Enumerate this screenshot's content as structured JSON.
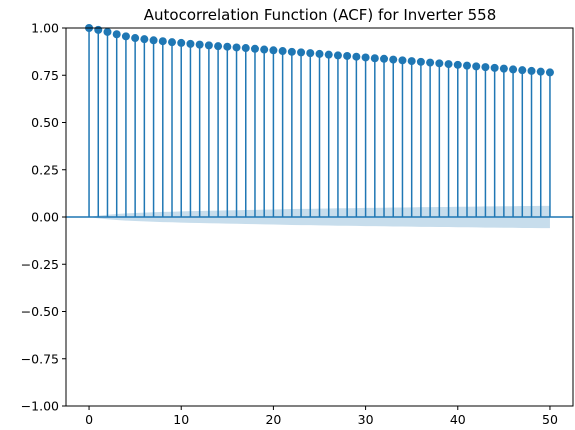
{
  "chart_data": {
    "type": "stem",
    "title": "Autocorrelation Function (ACF) for Inverter 558",
    "xlabel": "",
    "ylabel": "",
    "xlim": [
      -2.5,
      52.5
    ],
    "ylim": [
      -1.0,
      1.0
    ],
    "x_ticks": [
      0,
      10,
      20,
      30,
      40,
      50
    ],
    "x_tick_labels": [
      "0",
      "10",
      "20",
      "30",
      "40",
      "50"
    ],
    "y_ticks": [
      -1.0,
      -0.75,
      -0.5,
      -0.25,
      0.0,
      0.25,
      0.5,
      0.75,
      1.0
    ],
    "y_tick_labels": [
      "−1.00",
      "−0.75",
      "−0.50",
      "−0.25",
      "0.00",
      "0.25",
      "0.50",
      "0.75",
      "1.00"
    ],
    "grid": false,
    "colors": {
      "stem": "#1f77b4",
      "band": "#1f77b4",
      "zero_line": "#1f77b4"
    },
    "lags": [
      0,
      1,
      2,
      3,
      4,
      5,
      6,
      7,
      8,
      9,
      10,
      11,
      12,
      13,
      14,
      15,
      16,
      17,
      18,
      19,
      20,
      21,
      22,
      23,
      24,
      25,
      26,
      27,
      28,
      29,
      30,
      31,
      32,
      33,
      34,
      35,
      36,
      37,
      38,
      39,
      40,
      41,
      42,
      43,
      44,
      45,
      46,
      47,
      48,
      49,
      50
    ],
    "acf": [
      1.0,
      0.99,
      0.979,
      0.967,
      0.956,
      0.947,
      0.941,
      0.935,
      0.93,
      0.925,
      0.921,
      0.916,
      0.912,
      0.908,
      0.904,
      0.901,
      0.897,
      0.894,
      0.89,
      0.886,
      0.882,
      0.878,
      0.874,
      0.871,
      0.867,
      0.863,
      0.859,
      0.855,
      0.852,
      0.848,
      0.844,
      0.84,
      0.837,
      0.833,
      0.829,
      0.825,
      0.821,
      0.817,
      0.813,
      0.809,
      0.805,
      0.801,
      0.797,
      0.793,
      0.789,
      0.785,
      0.781,
      0.777,
      0.773,
      0.769,
      0.765
    ],
    "confidence_band": [
      0.0,
      0.007,
      0.012,
      0.016,
      0.019,
      0.021,
      0.023,
      0.025,
      0.027,
      0.028,
      0.03,
      0.031,
      0.032,
      0.033,
      0.034,
      0.035,
      0.036,
      0.037,
      0.038,
      0.039,
      0.04,
      0.041,
      0.042,
      0.043,
      0.043,
      0.044,
      0.045,
      0.046,
      0.046,
      0.047,
      0.048,
      0.048,
      0.049,
      0.05,
      0.05,
      0.051,
      0.052,
      0.052,
      0.053,
      0.053,
      0.054,
      0.054,
      0.055,
      0.056,
      0.056,
      0.057,
      0.057,
      0.058,
      0.058,
      0.059,
      0.059
    ]
  }
}
